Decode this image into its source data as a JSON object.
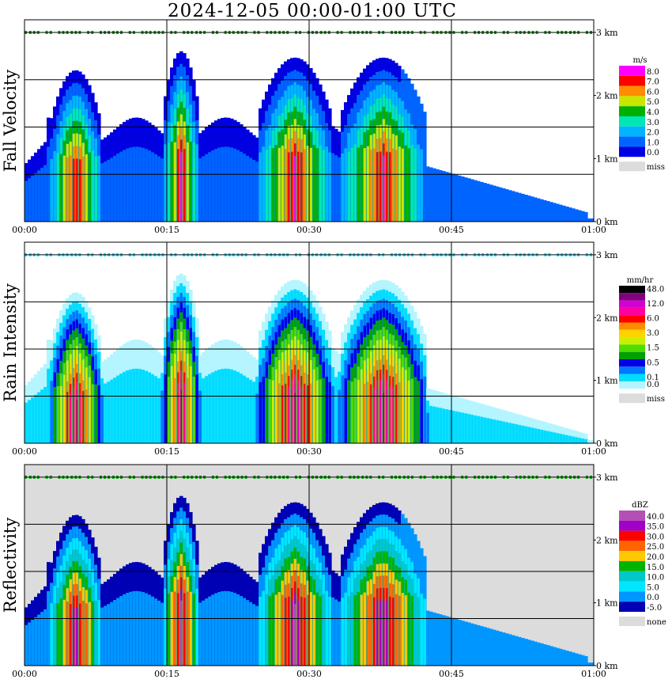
{
  "title": "2024-12-05   00:00-01:00 UTC",
  "chart_data": [
    {
      "type": "heatmap",
      "ylabel": "Fall Velocity",
      "x_ticks": [
        "00:00",
        "00:15",
        "00:30",
        "00:45",
        "01:00"
      ],
      "y_ticks": [
        "0 km",
        "1 km",
        "2 km",
        "3 km"
      ],
      "xlim": [
        "00:00",
        "01:00"
      ],
      "ylim_km": [
        0,
        3.2
      ],
      "grid": true,
      "legend": {
        "unit": "m/s",
        "entries": [
          {
            "label": "8.0",
            "color": "#ff00ff"
          },
          {
            "label": "7.0",
            "color": "#ff0000"
          },
          {
            "label": "6.0",
            "color": "#ff8c00"
          },
          {
            "label": "5.0",
            "color": "#c8e600"
          },
          {
            "label": "4.0",
            "color": "#00b000"
          },
          {
            "label": "3.0",
            "color": "#00e6b4"
          },
          {
            "label": "2.0",
            "color": "#00b4ff"
          },
          {
            "label": "1.0",
            "color": "#0064ff"
          },
          {
            "label": "0.0",
            "color": "#0000e0"
          },
          {
            "label": "miss",
            "color": "#dcdcdc"
          }
        ]
      }
    },
    {
      "type": "heatmap",
      "ylabel": "Rain Intensity",
      "x_ticks": [
        "00:00",
        "00:15",
        "00:30",
        "00:45",
        "01:00"
      ],
      "y_ticks": [
        "0 km",
        "1 km",
        "2 km",
        "3 km"
      ],
      "xlim": [
        "00:00",
        "01:00"
      ],
      "ylim_km": [
        0,
        3.2
      ],
      "grid": true,
      "legend": {
        "unit": "mm/hr",
        "entries": [
          {
            "label": "48.0",
            "color": "#000000"
          },
          {
            "label": "",
            "color": "#800080"
          },
          {
            "label": "12.0",
            "color": "#d200d2"
          },
          {
            "label": "",
            "color": "#ff00a0"
          },
          {
            "label": "6.0",
            "color": "#ff0000"
          },
          {
            "label": "",
            "color": "#ff8c00"
          },
          {
            "label": "3.0",
            "color": "#ffd200"
          },
          {
            "label": "",
            "color": "#c8f000"
          },
          {
            "label": "1.5",
            "color": "#50dc00"
          },
          {
            "label": "",
            "color": "#00a000"
          },
          {
            "label": "0.5",
            "color": "#0000e6"
          },
          {
            "label": "",
            "color": "#0078ff"
          },
          {
            "label": "0.1",
            "color": "#00dcff"
          },
          {
            "label": "0.0",
            "color": "#b4f5ff"
          },
          {
            "label": "miss",
            "color": "#dcdcdc"
          }
        ]
      }
    },
    {
      "type": "heatmap",
      "ylabel": "Reflectivity",
      "x_ticks": [
        "00:00",
        "00:15",
        "00:30",
        "00:45",
        "01:00"
      ],
      "y_ticks": [
        "0 km",
        "1 km",
        "2 km",
        "3 km"
      ],
      "xlim": [
        "00:00",
        "01:00"
      ],
      "ylim_km": [
        0,
        3.2
      ],
      "grid": true,
      "legend": {
        "unit": "dBZ",
        "entries": [
          {
            "label": "40.0",
            "color": "#b450b4"
          },
          {
            "label": "35.0",
            "color": "#a000c8"
          },
          {
            "label": "30.0",
            "color": "#ff0000"
          },
          {
            "label": "25.0",
            "color": "#ff6400"
          },
          {
            "label": "20.0",
            "color": "#ffc800"
          },
          {
            "label": "15.0",
            "color": "#00b400"
          },
          {
            "label": "10.0",
            "color": "#00c8c8"
          },
          {
            "label": "5.0",
            "color": "#00e6ff"
          },
          {
            "label": "0.0",
            "color": "#0096ff"
          },
          {
            "label": "-5.0",
            "color": "#0000b4"
          },
          {
            "label": "none",
            "color": "#dcdcdc"
          }
        ]
      }
    }
  ]
}
